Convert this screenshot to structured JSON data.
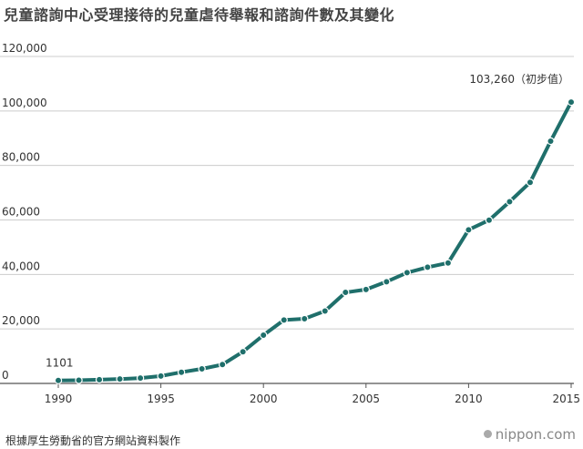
{
  "title": "兒童諮詢中心受理接待的兒童虐待舉報和諮詢件數及其變化",
  "source": "根據厚生勞動省的官方網站資料製作",
  "brand": "nippon.com",
  "colors": {
    "line": "#1f6f6b",
    "grid": "#cccccc",
    "axis": "#555555"
  },
  "chart_data": {
    "type": "line",
    "title": "兒童諮詢中心受理接待的兒童虐待舉報和諮詢件數及其變化",
    "xlabel": "",
    "ylabel": "",
    "xlim": [
      1990,
      2015
    ],
    "ylim": [
      0,
      120000
    ],
    "x_ticks": [
      "1990",
      "1995",
      "2000",
      "2005",
      "2010",
      "2015"
    ],
    "y_ticks": [
      "0",
      "20,000",
      "40,000",
      "60,000",
      "80,000",
      "100,000",
      "120,000"
    ],
    "grid": true,
    "x": [
      1990,
      1991,
      1992,
      1993,
      1994,
      1995,
      1996,
      1997,
      1998,
      1999,
      2000,
      2001,
      2002,
      2003,
      2004,
      2005,
      2006,
      2007,
      2008,
      2009,
      2010,
      2011,
      2012,
      2013,
      2014,
      2015
    ],
    "series": [
      {
        "values": [
          1101,
          1171,
          1372,
          1611,
          1961,
          2722,
          4102,
          5352,
          6932,
          11631,
          17725,
          23274,
          23738,
          26569,
          33408,
          34472,
          37323,
          40639,
          42664,
          44211,
          56384,
          59919,
          66701,
          73802,
          88931,
          103260
        ]
      }
    ],
    "annotations": [
      {
        "x": 1990,
        "y": 1101,
        "text": "1101"
      },
      {
        "x": 2015,
        "y": 103260,
        "text": "103,260（初步值）"
      }
    ]
  }
}
